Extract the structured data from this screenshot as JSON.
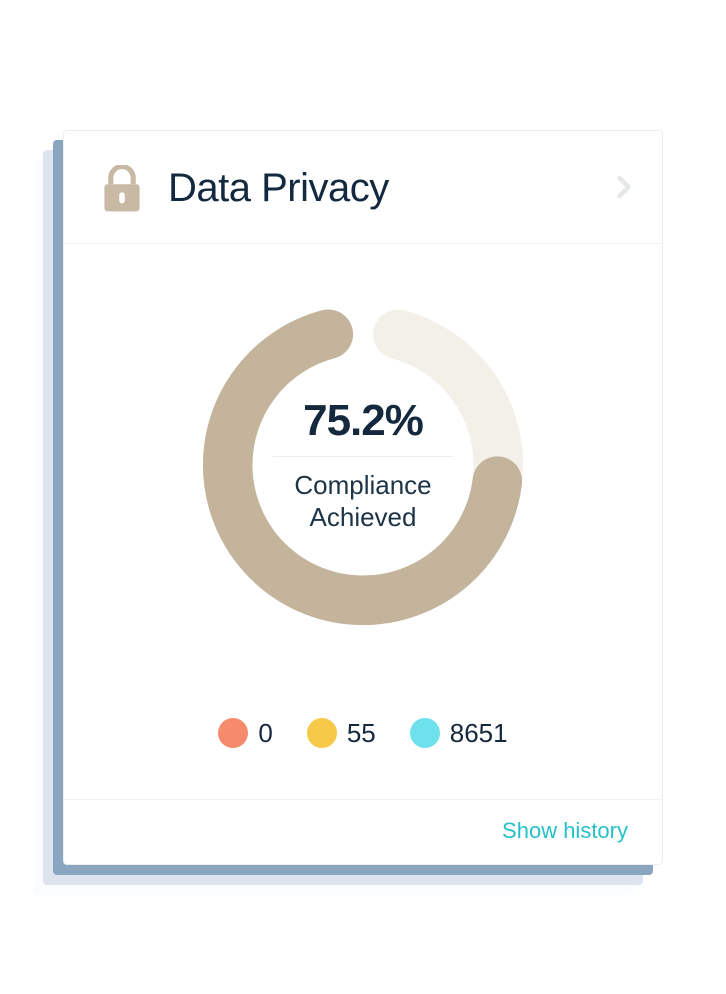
{
  "card": {
    "title": "Data Privacy",
    "icon_color": "#c7b9a3",
    "chevron_color": "#e6e7e8",
    "background_color": "#ffffff",
    "border_color": "#eceeee"
  },
  "compliance_chart": {
    "type": "donut",
    "value_text": "75.2%",
    "value_numeric": 75.2,
    "label": "Compliance Achieved",
    "track_color": "#f3efe9",
    "progress_color": "#c3b49b",
    "stroke_width": 30,
    "gap_degrees": 30,
    "value_fontsize": 44,
    "value_color": "#14293e",
    "label_fontsize": 26,
    "label_color": "#1d3346",
    "divider_color": "#eceeee"
  },
  "legend": {
    "items": [
      {
        "color": "#f58b6c",
        "value": "0"
      },
      {
        "color": "#f7c948",
        "value": "55"
      },
      {
        "color": "#6fe1ec",
        "value": "8651"
      }
    ],
    "value_fontsize": 26,
    "value_color": "#14293e",
    "dot_size": 30
  },
  "footer": {
    "show_history_label": "Show history",
    "link_color": "#27c1c9"
  }
}
